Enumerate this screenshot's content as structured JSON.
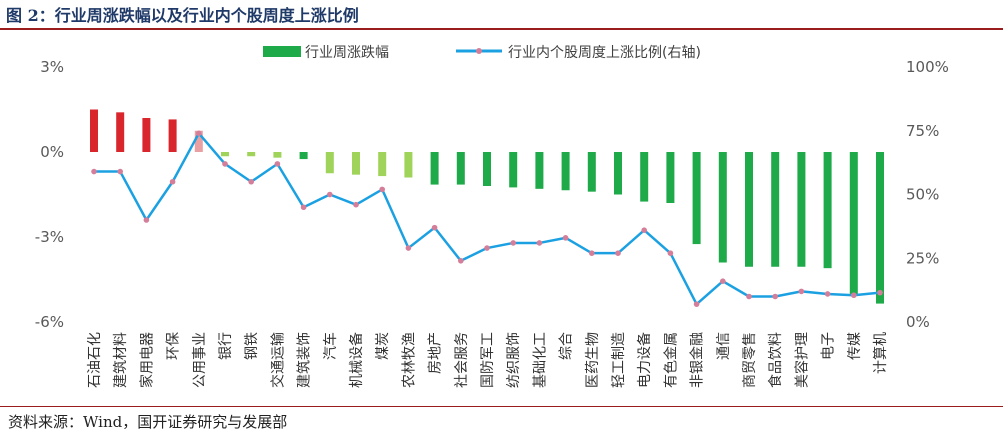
{
  "title": "图 2：行业周涨跌幅以及行业内个股周度上涨比例",
  "source": "资料来源：Wind，国开证券研究与发展部",
  "colors": {
    "title": "#1f3a68",
    "rule": "#9b1c1c",
    "bar_positive": "#d9262d",
    "bar_positive_light": "#e8a0a2",
    "bar_negative_light": "#9fd35a",
    "bar_negative": "#1faa4a",
    "line": "#1ba1e2",
    "marker": "#d57e9a"
  },
  "chart_data": {
    "type": "bar+line",
    "legend_position": "top",
    "grid": false,
    "categories": [
      "石油石化",
      "建筑材料",
      "家用电器",
      "环保",
      "公用事业",
      "银行",
      "钢铁",
      "交通运输",
      "建筑装饰",
      "汽车",
      "机械设备",
      "煤炭",
      "农林牧渔",
      "房地产",
      "社会服务",
      "国防军工",
      "纺织服饰",
      "基础化工",
      "综合",
      "医药生物",
      "轻工制造",
      "电力设备",
      "有色金属",
      "非银金融",
      "通信",
      "商贸零售",
      "食品饮料",
      "美容护理",
      "电子",
      "传媒",
      "计算机"
    ],
    "y_left": {
      "ticks": [
        "3%",
        "0%",
        "-3%",
        "-6%"
      ],
      "ylim": [
        -6,
        3
      ]
    },
    "y_right": {
      "ticks": [
        "100%",
        "75%",
        "50%",
        "25%",
        "0%"
      ],
      "ylim": [
        0,
        100
      ]
    },
    "series": [
      {
        "name": "行业周涨跌幅",
        "type": "bar",
        "axis": "left",
        "values": [
          1.5,
          1.4,
          1.2,
          1.15,
          0.75,
          -0.15,
          -0.15,
          -0.2,
          -0.25,
          -0.75,
          -0.8,
          -0.85,
          -0.9,
          -1.15,
          -1.15,
          -1.2,
          -1.25,
          -1.3,
          -1.35,
          -1.4,
          -1.5,
          -1.75,
          -1.8,
          -3.25,
          -3.9,
          -4.05,
          -4.05,
          -4.05,
          -4.1,
          -5.05,
          -5.35
        ],
        "styles": [
          "positive",
          "positive",
          "positive",
          "positive",
          "positive_light",
          "negative_light",
          "negative_light",
          "negative_light",
          "negative",
          "negative_light",
          "negative_light",
          "negative_light",
          "negative_light",
          "negative",
          "negative",
          "negative",
          "negative",
          "negative",
          "negative",
          "negative",
          "negative",
          "negative",
          "negative",
          "negative",
          "negative",
          "negative",
          "negative",
          "negative",
          "negative",
          "negative",
          "negative"
        ]
      },
      {
        "name": "行业内个股周度上涨比例(右轴)",
        "type": "line",
        "axis": "right",
        "values": [
          59,
          59,
          40,
          55,
          74,
          62,
          55,
          62,
          45,
          50,
          46,
          52,
          29,
          37,
          24,
          29,
          31,
          31,
          33,
          27,
          27,
          36,
          27,
          7,
          16,
          10,
          10,
          12,
          11,
          10.5,
          11.5
        ]
      }
    ]
  }
}
